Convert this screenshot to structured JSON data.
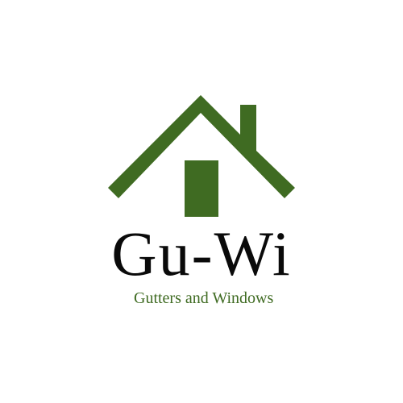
{
  "logo": {
    "brand_name": "Gu-Wi",
    "tagline": "Gutters and Windows",
    "icon": "house-icon",
    "colors": {
      "accent": "#3f6b22",
      "text": "#0a0a0a",
      "background": "#ffffff"
    }
  }
}
